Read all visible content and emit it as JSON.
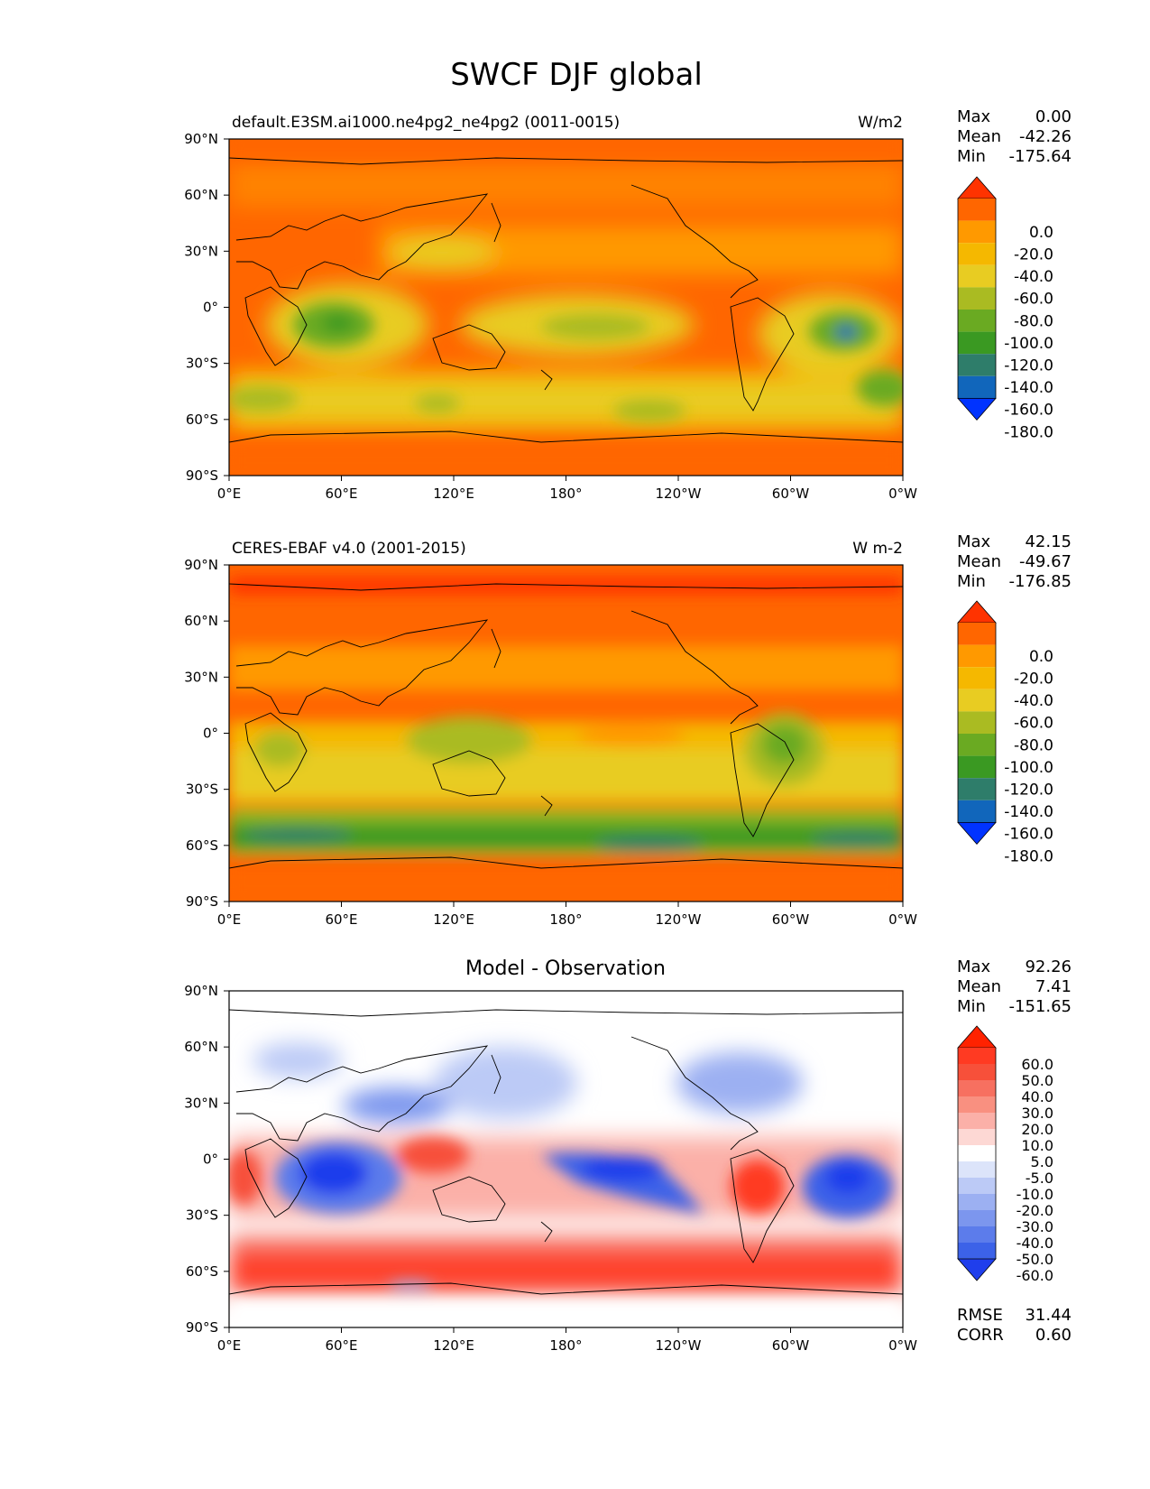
{
  "figure": {
    "title": "SWCF DJF global"
  },
  "axes": {
    "lon_ticks": [
      "0°E",
      "60°E",
      "120°E",
      "180°",
      "120°W",
      "60°W",
      "0°W"
    ],
    "lat_ticks": [
      "90°N",
      "60°N",
      "30°N",
      "0°",
      "30°S",
      "60°S",
      "90°S"
    ]
  },
  "panels": [
    {
      "title_left": "default.E3SM.ai1000.ne4pg2_ne4pg2 (0011-0015)",
      "title_center": "",
      "units": "W/m2",
      "stats": {
        "max_label": "Max",
        "max": "0.00",
        "mean_label": "Mean",
        "mean": "-42.26",
        "min_label": "Min",
        "min": "-175.64"
      },
      "colorbar": {
        "labels": [
          "0.0",
          "-20.0",
          "-40.0",
          "-60.0",
          "-80.0",
          "-100.0",
          "-120.0",
          "-140.0",
          "-160.0",
          "-180.0"
        ],
        "colors": [
          "#ff3300",
          "#ff6600",
          "#ff9900",
          "#f5b800",
          "#e8cc22",
          "#aabb22",
          "#6aaa22",
          "#3a9922",
          "#2e7d6a",
          "#1166bb",
          "#0033ff"
        ]
      }
    },
    {
      "title_left": "CERES-EBAF v4.0 (2001-2015)",
      "title_center": "",
      "units": "W m-2",
      "stats": {
        "max_label": "Max",
        "max": "42.15",
        "mean_label": "Mean",
        "mean": "-49.67",
        "min_label": "Min",
        "min": "-176.85"
      },
      "colorbar": {
        "labels": [
          "0.0",
          "-20.0",
          "-40.0",
          "-60.0",
          "-80.0",
          "-100.0",
          "-120.0",
          "-140.0",
          "-160.0",
          "-180.0"
        ],
        "colors": [
          "#ff3300",
          "#ff6600",
          "#ff9900",
          "#f5b800",
          "#e8cc22",
          "#aabb22",
          "#6aaa22",
          "#3a9922",
          "#2e7d6a",
          "#1166bb",
          "#0033ff"
        ]
      }
    },
    {
      "title_left": "",
      "title_center": "Model - Observation",
      "units": "",
      "stats": {
        "max_label": "Max",
        "max": "92.26",
        "mean_label": "Mean",
        "mean": "7.41",
        "min_label": "Min",
        "min": "-151.65"
      },
      "colorbar": {
        "labels": [
          "60.0",
          "50.0",
          "40.0",
          "30.0",
          "20.0",
          "10.0",
          "5.0",
          "-5.0",
          "-10.0",
          "-20.0",
          "-30.0",
          "-40.0",
          "-50.0",
          "-60.0"
        ],
        "colors": [
          "#ff2200",
          "#ff3a22",
          "#f7503a",
          "#f77060",
          "#f99080",
          "#fbb0a8",
          "#fdd8d4",
          "#ffffff",
          "#dce4fa",
          "#bccaf6",
          "#9cb0f2",
          "#7c96ee",
          "#5c7ceb",
          "#3c62e8",
          "#1f3eec"
        ]
      },
      "metrics": {
        "rmse_label": "RMSE",
        "rmse": "31.44",
        "corr_label": "CORR",
        "corr": "0.60"
      }
    }
  ],
  "chart_data": [
    {
      "type": "heatmap",
      "title": "default.E3SM.ai1000.ne4pg2_ne4pg2 (0011-0015)",
      "variable": "SWCF",
      "season": "DJF",
      "units": "W/m2",
      "x_range": [
        0,
        360
      ],
      "y_range": [
        -90,
        90
      ],
      "color_levels": [
        -180,
        -160,
        -140,
        -120,
        -100,
        -80,
        -60,
        -40,
        -20,
        0
      ],
      "stats": {
        "max": 0.0,
        "mean": -42.26,
        "min": -175.64
      }
    },
    {
      "type": "heatmap",
      "title": "CERES-EBAF v4.0 (2001-2015)",
      "variable": "SWCF",
      "season": "DJF",
      "units": "W m-2",
      "x_range": [
        0,
        360
      ],
      "y_range": [
        -90,
        90
      ],
      "color_levels": [
        -180,
        -160,
        -140,
        -120,
        -100,
        -80,
        -60,
        -40,
        -20,
        0
      ],
      "stats": {
        "max": 42.15,
        "mean": -49.67,
        "min": -176.85
      }
    },
    {
      "type": "heatmap",
      "title": "Model - Observation",
      "variable": "SWCF",
      "season": "DJF",
      "x_range": [
        0,
        360
      ],
      "y_range": [
        -90,
        90
      ],
      "color_levels": [
        -60,
        -50,
        -40,
        -30,
        -20,
        -10,
        -5,
        5,
        10,
        20,
        30,
        40,
        50,
        60
      ],
      "stats": {
        "max": 92.26,
        "mean": 7.41,
        "min": -151.65
      },
      "rmse": 31.44,
      "corr": 0.6
    }
  ]
}
